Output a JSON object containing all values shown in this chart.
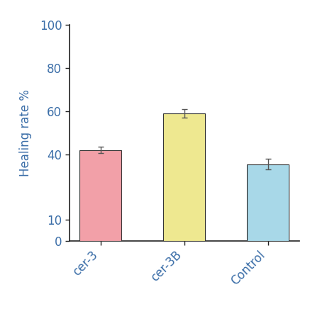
{
  "categories": [
    "cer-3",
    "cer-3B",
    "Control"
  ],
  "values": [
    42.0,
    59.0,
    35.5
  ],
  "errors": [
    1.5,
    2.0,
    2.5
  ],
  "bar_colors": [
    "#F2A0A8",
    "#EEE890",
    "#A8D8E8"
  ],
  "bar_edge_colors": [
    "#333333",
    "#333333",
    "#333333"
  ],
  "ylabel": "Healing rate %",
  "ylim": [
    0,
    100
  ],
  "yticks": [
    0,
    10,
    40,
    60,
    80,
    100
  ],
  "bar_width": 0.5,
  "tick_label_color": "#3B6EA8",
  "axis_label_color": "#3B6EA8",
  "background_color": "#FFFFFF",
  "error_capsize": 3,
  "error_color": "#555555",
  "error_linewidth": 1.0,
  "xlabel_rotation": 45,
  "label_fontsize": 12,
  "tick_fontsize": 12
}
